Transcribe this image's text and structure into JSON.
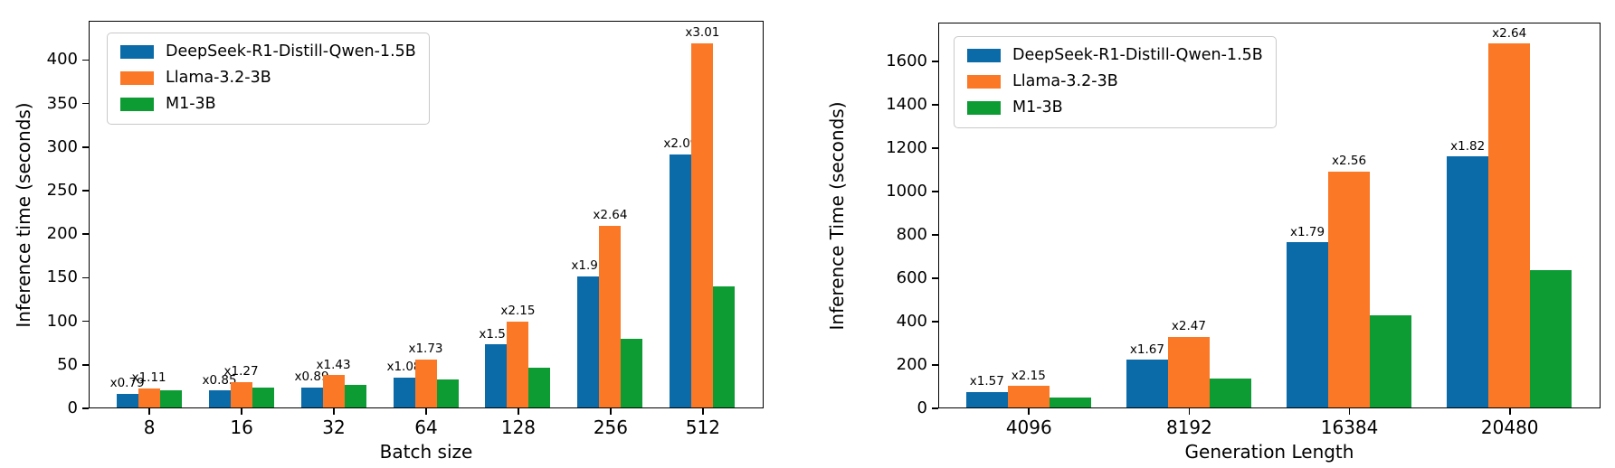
{
  "colors": {
    "blue": "#0b6aa8",
    "orange": "#fb7827",
    "green": "#0d9b34",
    "axis": "#000000",
    "legend_border": "#c9c9c9",
    "background": "#ffffff"
  },
  "chart_data": [
    {
      "type": "bar",
      "title": "",
      "xlabel": "Batch size",
      "ylabel": "Inference time (seconds)",
      "categories": [
        "8",
        "16",
        "32",
        "64",
        "128",
        "256",
        "512"
      ],
      "ylim": [
        0,
        445
      ],
      "yticks": [
        0,
        50,
        100,
        150,
        200,
        250,
        300,
        350,
        400
      ],
      "grid": false,
      "legend_position": "upper left",
      "series": [
        {
          "name": "DeepSeek-R1-Distill-Qwen-1.5B",
          "color": "#0b6aa8",
          "values": [
            15.8,
            19.6,
            23.1,
            34.6,
            72.2,
            150.9,
            290.5
          ],
          "bar_labels": [
            "x0.79",
            "x0.85",
            "x0.89",
            "x1.08",
            "x1.57",
            "x1.91",
            "x2.09"
          ]
        },
        {
          "name": "Llama-3.2-3B",
          "color": "#fb7827",
          "values": [
            22.2,
            29.2,
            37.2,
            55.4,
            98.9,
            208.6,
            418.4
          ],
          "bar_labels": [
            "x1.11",
            "x1.27",
            "x1.43",
            "x1.73",
            "x2.15",
            "x2.64",
            "x3.01"
          ]
        },
        {
          "name": "M1-3B",
          "color": "#0d9b34",
          "values": [
            20.0,
            23.0,
            26.0,
            32.0,
            46.0,
            79.0,
            139.0
          ],
          "bar_labels": [
            "",
            "",
            "",
            "",
            "",
            "",
            ""
          ]
        }
      ]
    },
    {
      "type": "bar",
      "title": "",
      "xlabel": "Generation Length",
      "ylabel": "Inference Time (seconds)",
      "categories": [
        "4096",
        "8192",
        "16384",
        "20480"
      ],
      "ylim": [
        0,
        1778
      ],
      "yticks": [
        0,
        200,
        400,
        600,
        800,
        1000,
        1200,
        1400,
        1600
      ],
      "grid": false,
      "legend_position": "upper left",
      "series": [
        {
          "name": "DeepSeek-R1-Distill-Qwen-1.5B",
          "color": "#0b6aa8",
          "values": [
            72.2,
            220.4,
            760.8,
            1155.7
          ],
          "bar_labels": [
            "x1.57",
            "x1.67",
            "x1.79",
            "x1.82"
          ]
        },
        {
          "name": "Llama-3.2-3B",
          "color": "#fb7827",
          "values": [
            98.9,
            326.0,
            1088.0,
            1676.4
          ],
          "bar_labels": [
            "x2.15",
            "x2.47",
            "x2.56",
            "x2.64"
          ]
        },
        {
          "name": "M1-3B",
          "color": "#0d9b34",
          "values": [
            46.0,
            132.0,
            425.0,
            635.0
          ],
          "bar_labels": [
            "",
            "",
            "",
            ""
          ]
        }
      ]
    }
  ]
}
